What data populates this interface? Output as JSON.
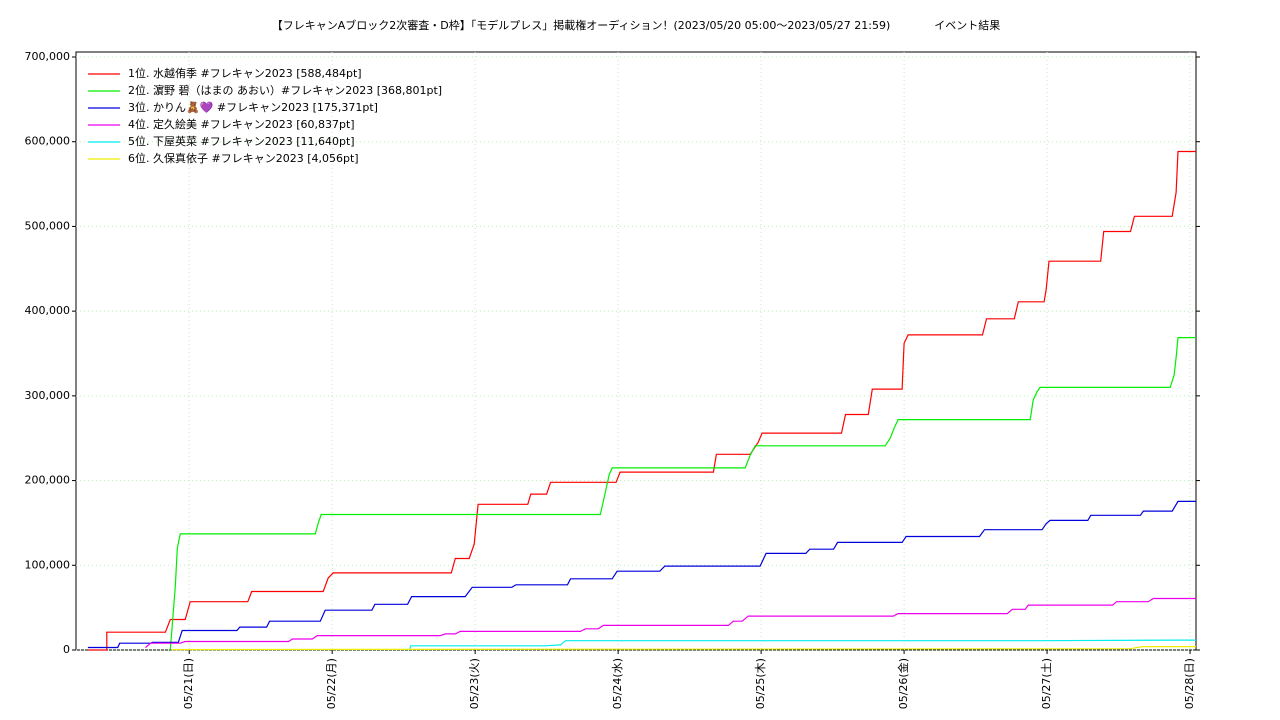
{
  "chart_data": {
    "type": "line",
    "title": "【フレキャンAブロック2次審査・D枠】「モデルプレス」掲載権オーディション！(2023/05/20 05:00〜2023/05/27 21:59)　　　　イベント結果",
    "xlim": [
      "05/20 05:00",
      "05/28 01:00"
    ],
    "xticks": [
      {
        "value": "05/21 00:00",
        "label": "05/21(日)"
      },
      {
        "value": "05/22 00:00",
        "label": "05/22(月)"
      },
      {
        "value": "05/23 00:00",
        "label": "05/23(火)"
      },
      {
        "value": "05/24 00:00",
        "label": "05/24(水)"
      },
      {
        "value": "05/25 00:00",
        "label": "05/25(木)"
      },
      {
        "value": "05/26 00:00",
        "label": "05/26(金)"
      },
      {
        "value": "05/27 00:00",
        "label": "05/27(土)"
      },
      {
        "value": "05/28 00:00",
        "label": "05/28(日)"
      }
    ],
    "ylim": [
      0,
      700000
    ],
    "yticks": [
      0,
      {
        "value": 100000,
        "label": "100,000"
      },
      {
        "value": 200000,
        "label": "200,000"
      },
      {
        "value": 300000,
        "label": "300,000"
      },
      {
        "value": 400000,
        "label": "400,000"
      },
      {
        "value": 500000,
        "label": "500,000"
      },
      {
        "value": 600000,
        "label": "600,000"
      },
      {
        "value": 700000,
        "label": "700,000"
      }
    ],
    "grid": true,
    "legend": "upper left",
    "series": [
      {
        "name": "1位. 水越侑季 #フレキャン2023 [588,484pt]",
        "color": "#ff0000",
        "x": [
          "05/20 07:00",
          "05/20 10:10",
          "05/20 10:10",
          "05/20 20:00",
          "05/20 20:50",
          "05/20 23:20",
          "05/21 00:10",
          "05/21 09:50",
          "05/21 10:30",
          "05/21 22:30",
          "05/21 23:20",
          "05/22 00:10",
          "05/22 20:00",
          "05/22 20:40",
          "05/22 23:00",
          "05/22 23:50",
          "05/23 00:30",
          "05/23 08:50",
          "05/23 09:20",
          "05/23 12:00",
          "05/23 12:40",
          "05/23 23:40",
          "05/24 00:20",
          "05/24 16:00",
          "05/24 16:30",
          "05/24 22:10",
          "05/24 23:30",
          "05/25 00:10",
          "05/25 13:30",
          "05/25 14:10",
          "05/25 18:00",
          "05/25 18:40",
          "05/25 23:40",
          "05/26 00:00",
          "05/26 00:40",
          "05/26 13:10",
          "05/26 13:50",
          "05/26 18:30",
          "05/26 19:10",
          "05/26 23:30",
          "05/26 23:50",
          "05/27 00:20",
          "05/27 09:00",
          "05/27 09:30",
          "05/27 14:00",
          "05/27 14:40",
          "05/27 21:00",
          "05/27 21:40",
          "05/27 21:59",
          "05/28 01:00"
        ],
        "values": [
          0,
          0,
          21000,
          21000,
          36000,
          36000,
          57000,
          57000,
          69000,
          69000,
          85000,
          91000,
          91000,
          108000,
          108000,
          125000,
          172000,
          172000,
          184000,
          184000,
          198000,
          198000,
          210000,
          210000,
          231000,
          231000,
          245000,
          256000,
          256000,
          278000,
          278000,
          308000,
          308000,
          362000,
          372000,
          372000,
          391000,
          391000,
          411000,
          411000,
          425000,
          459000,
          459000,
          494000,
          494000,
          512000,
          512000,
          540000,
          588484,
          588484
        ]
      },
      {
        "name": "2位. 濵野 碧（はまの あおい）#フレキャン2023 [368,801pt]",
        "color": "#00ee00",
        "x": [
          "05/20 20:50",
          "05/20 21:40",
          "05/20 22:00",
          "05/20 22:30",
          "05/21 21:10",
          "05/21 21:40",
          "05/21 22:10",
          "05/23 21:00",
          "05/23 21:40",
          "05/23 22:30",
          "05/23 23:00",
          "05/24 21:20",
          "05/24 22:10",
          "05/24 23:00",
          "05/25 20:50",
          "05/25 21:40",
          "05/25 22:20",
          "05/25 23:00",
          "05/26 21:10",
          "05/26 21:40",
          "05/26 22:20",
          "05/26 22:50",
          "05/27 20:40",
          "05/27 21:20",
          "05/27 21:40",
          "05/27 21:59",
          "05/28 01:00"
        ],
        "values": [
          0,
          75000,
          120000,
          137000,
          137000,
          150000,
          160000,
          160000,
          180000,
          207000,
          215000,
          215000,
          230000,
          241000,
          241000,
          250000,
          262000,
          272000,
          272000,
          295000,
          305000,
          310000,
          310000,
          325000,
          345000,
          368801,
          368801
        ]
      },
      {
        "name": "3位. かりん🧸💜 #フレキャン2023 [175,371pt]",
        "color": "#0000dd",
        "x": [
          "05/20 07:00",
          "05/20 12:00",
          "05/20 12:20",
          "05/20 17:30",
          "05/20 17:50",
          "05/20 22:10",
          "05/20 22:50",
          "05/21 08:00",
          "05/21 08:30",
          "05/21 13:00",
          "05/21 13:30",
          "05/21 22:00",
          "05/21 22:50",
          "05/22 06:40",
          "05/22 07:10",
          "05/22 12:40",
          "05/22 13:20",
          "05/22 22:20",
          "05/22 23:30",
          "05/23 06:10",
          "05/23 06:50",
          "05/23 15:30",
          "05/23 16:00",
          "05/23 23:00",
          "05/23 23:50",
          "05/24 07:00",
          "05/24 07:50",
          "05/24 23:50",
          "05/25 00:50",
          "05/25 07:30",
          "05/25 08:10",
          "05/25 12:10",
          "05/25 12:50",
          "05/25 23:40",
          "05/26 00:20",
          "05/26 12:40",
          "05/26 13:30",
          "05/26 23:10",
          "05/26 23:50",
          "05/27 00:30",
          "05/27 06:50",
          "05/27 07:20",
          "05/27 15:40",
          "05/27 16:10",
          "05/27 21:00",
          "05/27 21:59",
          "05/28 01:00"
        ],
        "values": [
          3000,
          3000,
          8000,
          8000,
          9000,
          9000,
          23000,
          23000,
          27000,
          27000,
          34000,
          34000,
          47000,
          47000,
          54000,
          54000,
          63000,
          63000,
          74000,
          74000,
          77000,
          77000,
          84000,
          84000,
          93000,
          93000,
          99000,
          99000,
          114000,
          114000,
          119000,
          119000,
          127000,
          127000,
          134000,
          134000,
          142000,
          142000,
          149000,
          153000,
          153000,
          159000,
          159000,
          164000,
          164000,
          175371,
          175371
        ]
      },
      {
        "name": "4位. 定久絵美 #フレキャン2023 [60,837pt]",
        "color": "#ee00ee",
        "x": [
          "05/20 16:40",
          "05/20 17:30",
          "05/20 22:30",
          "05/20 23:20",
          "05/21 16:40",
          "05/21 17:20",
          "05/21 20:40",
          "05/21 21:30",
          "05/22 18:10",
          "05/22 19:00",
          "05/22 20:40",
          "05/22 21:30",
          "05/23 17:40",
          "05/23 18:30",
          "05/23 20:40",
          "05/23 21:30",
          "05/24 18:30",
          "05/24 19:20",
          "05/24 20:50",
          "05/24 21:50",
          "05/25 22:10",
          "05/25 23:00",
          "05/26 17:20",
          "05/26 18:10",
          "05/26 20:20",
          "05/26 20:50",
          "05/27 11:00",
          "05/27 11:40",
          "05/27 17:00",
          "05/27 17:50",
          "05/28 01:00"
        ],
        "values": [
          3000,
          8000,
          8000,
          10000,
          10000,
          13000,
          13000,
          17000,
          17000,
          19000,
          19000,
          22000,
          22000,
          25000,
          25000,
          29000,
          29000,
          34000,
          34000,
          40000,
          40000,
          43000,
          43000,
          48000,
          48000,
          53000,
          53000,
          57000,
          57000,
          60837,
          60837
        ]
      },
      {
        "name": "5位. 下屋英菜 #フレキャン2023 [11,640pt]",
        "color": "#00eeee",
        "x": [
          "05/22 13:00",
          "05/22 13:10",
          "05/23 11:40",
          "05/23 14:20",
          "05/23 15:10",
          "05/26 23:00",
          "05/27 21:59",
          "05/28 01:00"
        ],
        "values": [
          0,
          5000,
          5000,
          6000,
          11000,
          11000,
          11640,
          11640
        ]
      },
      {
        "name": "6位. 久保真依子 #フレキャン2023 [4,056pt]",
        "color": "#eeee00",
        "x": [
          "05/20 21:00",
          "05/27 14:00",
          "05/27 16:00",
          "05/28 01:00"
        ],
        "values": [
          500,
          1500,
          4056,
          4056
        ]
      }
    ]
  }
}
